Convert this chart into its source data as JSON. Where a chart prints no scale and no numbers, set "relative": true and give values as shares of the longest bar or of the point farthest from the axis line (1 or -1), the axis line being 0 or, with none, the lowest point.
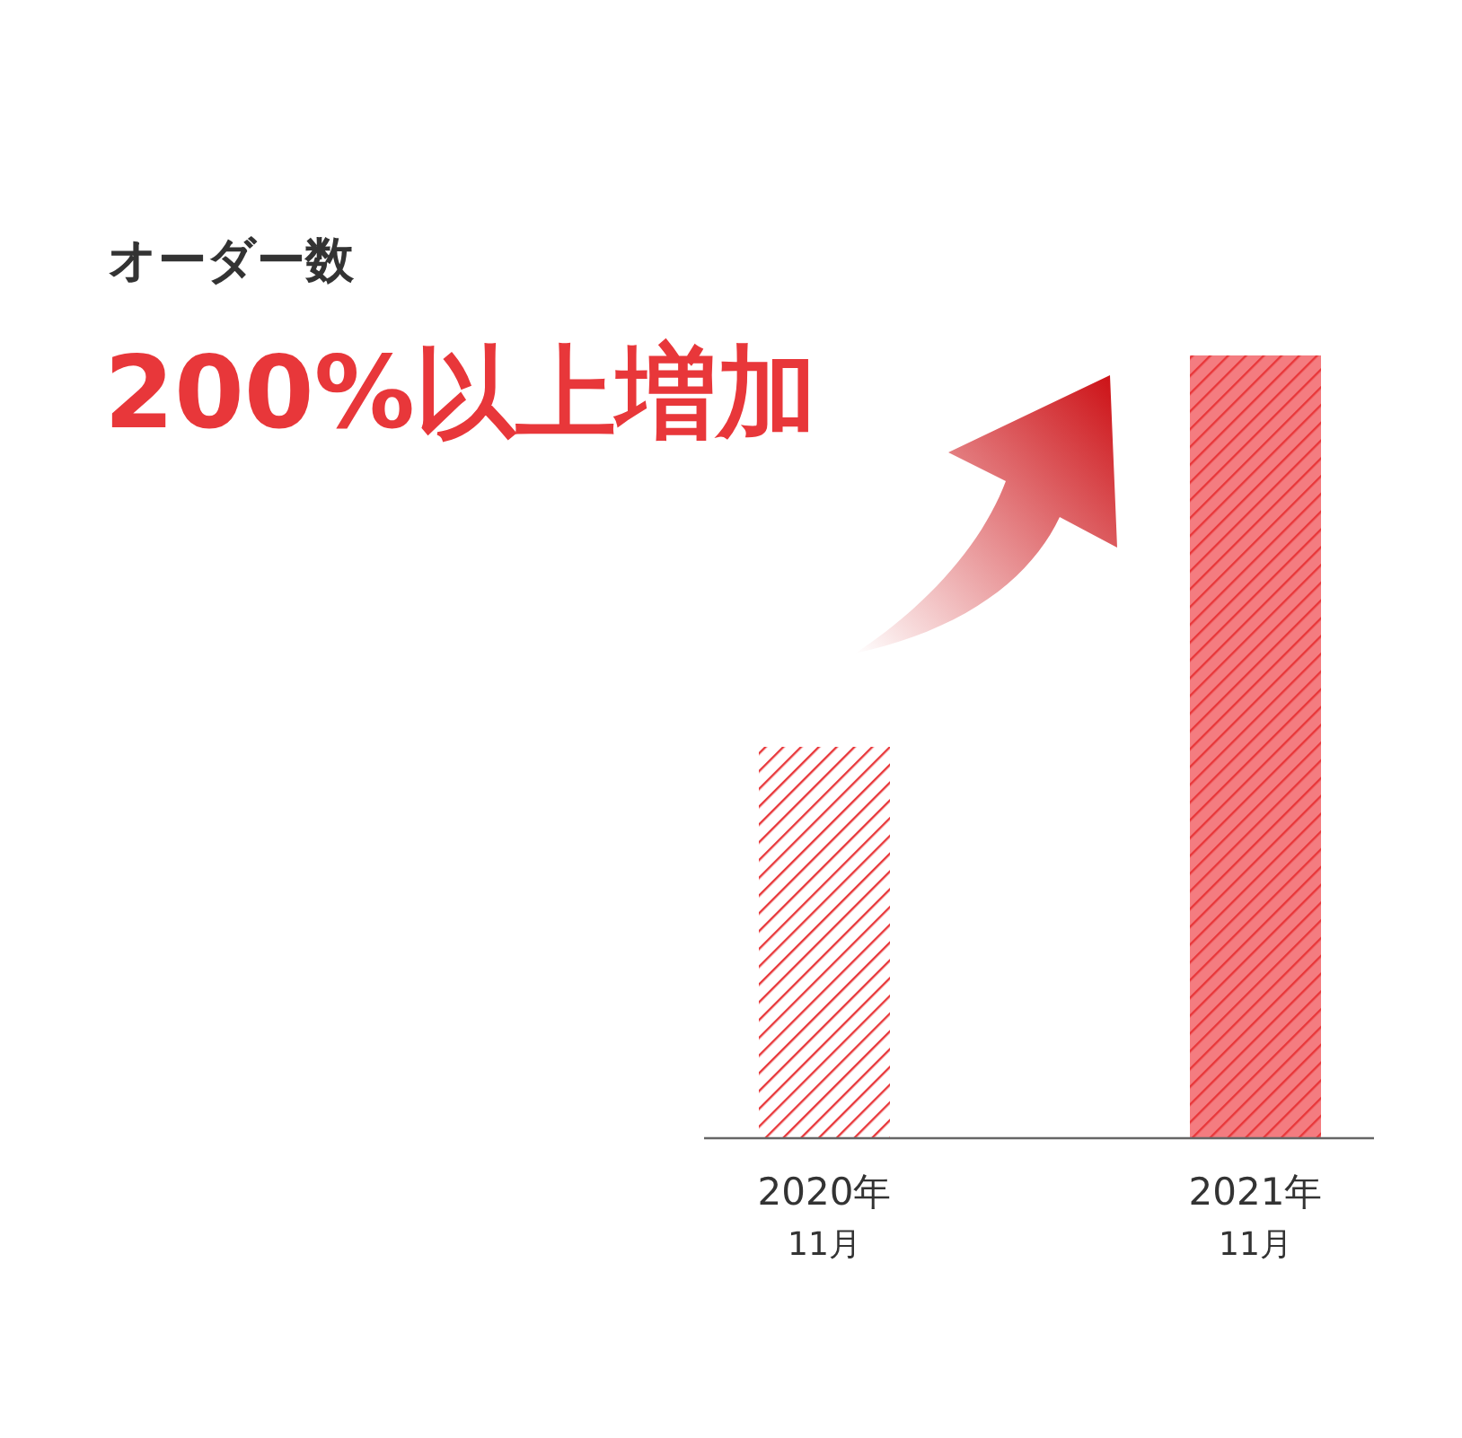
{
  "chart_data": {
    "type": "bar",
    "relative": true,
    "title": "オーダー数",
    "subtitle": "200%以上増加",
    "categories": [
      "2020年\n11月",
      "2021年\n11月"
    ],
    "values": [
      0.5,
      1
    ],
    "colors": [
      "#ffffff",
      "#f47c80"
    ]
  }
}
